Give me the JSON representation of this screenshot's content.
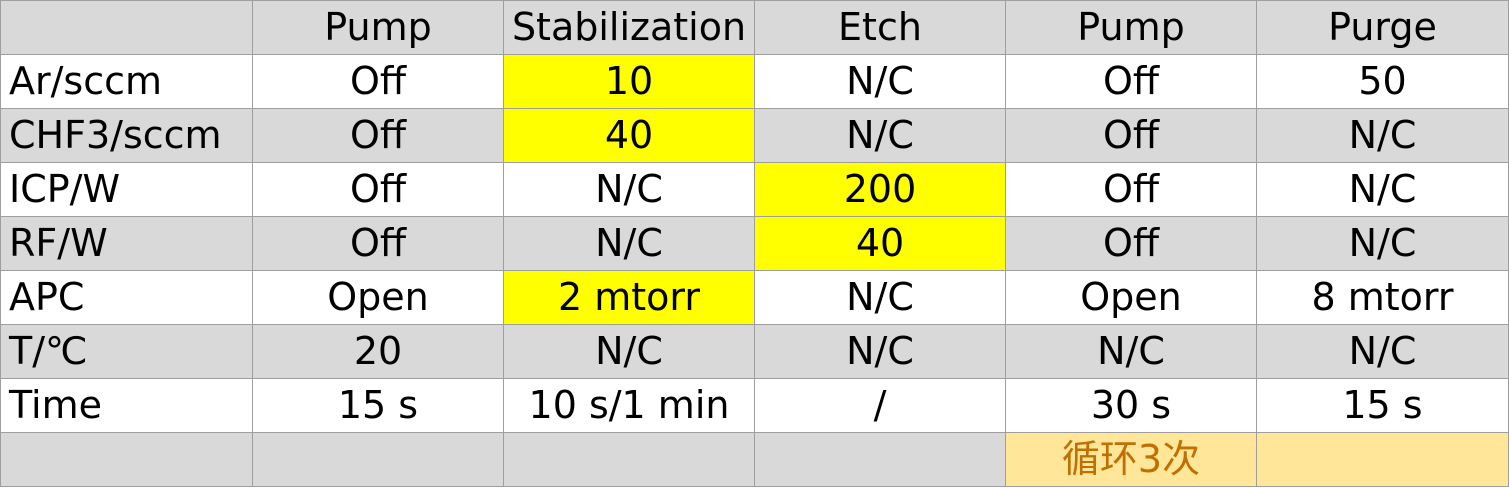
{
  "table": {
    "headers": [
      "",
      "Pump",
      "Stabilization",
      "Etch",
      "Pump",
      "Purge"
    ],
    "rows": [
      {
        "label": "Ar/sccm",
        "cells": [
          "Off",
          "10",
          "N/C",
          "Off",
          "50"
        ]
      },
      {
        "label": "CHF3/sccm",
        "cells": [
          "Off",
          "40",
          "N/C",
          "Off",
          "N/C"
        ]
      },
      {
        "label": "ICP/W",
        "cells": [
          "Off",
          "N/C",
          "200",
          "Off",
          "N/C"
        ]
      },
      {
        "label": "RF/W",
        "cells": [
          "Off",
          "N/C",
          "40",
          "Off",
          "N/C"
        ]
      },
      {
        "label": "APC",
        "cells": [
          "Open",
          "2 mtorr",
          "N/C",
          "Open",
          "8 mtorr"
        ]
      },
      {
        "label": "T/℃",
        "cells": [
          "20",
          "N/C",
          "N/C",
          "N/C",
          "N/C"
        ]
      },
      {
        "label": "Time",
        "cells": [
          "15 s",
          "10 s/1 min",
          "/",
          "30 s",
          "15 s"
        ]
      }
    ],
    "footer": {
      "label": "",
      "cells": [
        "",
        "",
        "",
        "循环3次",
        ""
      ]
    }
  },
  "colors": {
    "header_row_bg": "#d9d9d9",
    "shaded_row_bg": "#d9d9d9",
    "highlight_yellow": "#ffff00",
    "loop_cell_bg": "#ffe699",
    "loop_cell_text": "#c07000",
    "grid_line": "#9e9e9e"
  }
}
